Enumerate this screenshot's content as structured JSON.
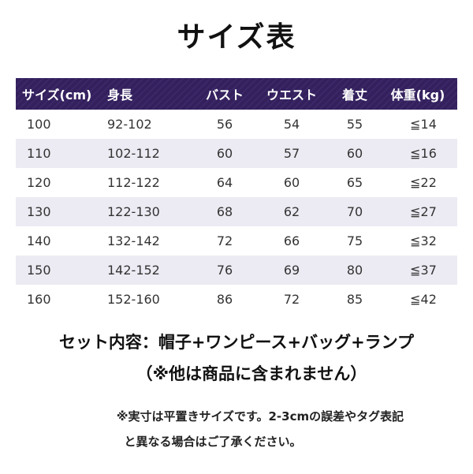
{
  "title": "サイズ表",
  "colors": {
    "header_bg": "#33205c",
    "row_shade": "#ecebf3"
  },
  "table": {
    "headers": [
      "サイズ(cm)",
      "身長",
      "バスト",
      "ウエスト",
      "着丈",
      "体重(kg)"
    ],
    "rows": [
      [
        "100",
        "92-102",
        "56",
        "54",
        "55",
        "≦14"
      ],
      [
        "110",
        "102-112",
        "60",
        "57",
        "60",
        "≦16"
      ],
      [
        "120",
        "112-122",
        "64",
        "60",
        "65",
        "≦22"
      ],
      [
        "130",
        "122-130",
        "68",
        "62",
        "70",
        "≦27"
      ],
      [
        "140",
        "132-142",
        "72",
        "66",
        "75",
        "≦32"
      ],
      [
        "150",
        "142-152",
        "76",
        "69",
        "80",
        "≦37"
      ],
      [
        "160",
        "152-160",
        "86",
        "72",
        "85",
        "≦42"
      ]
    ]
  },
  "set_contents": "セット内容：帽子+ワンピース+バッグ+ランプ",
  "exclusion": "（※他は商品に含まれません）",
  "notes": [
    "※実寸は平置きサイズです。2-3cmの誤差やタグ表記",
    "と異なる場合はご了承ください。"
  ]
}
